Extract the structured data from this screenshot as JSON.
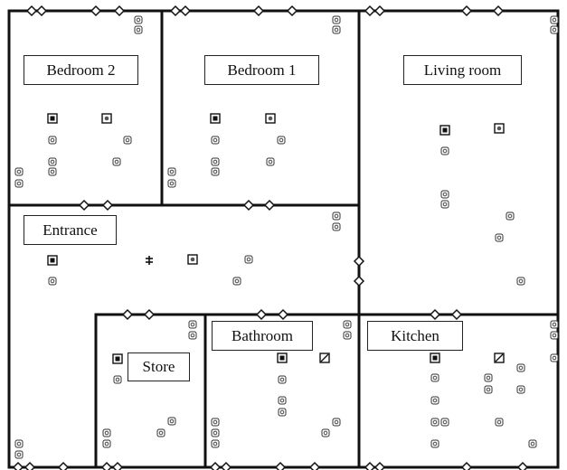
{
  "rooms": {
    "bedroom2": "Bedroom 2",
    "bedroom1": "Bedroom 1",
    "living": "Living room",
    "entrance": "Entrance",
    "store": "Store",
    "bathroom": "Bathroom",
    "kitchen": "Kitchen"
  },
  "icons": {
    "sensor_small": "sensor-icon",
    "sensor_filled": "sensor-filled-icon",
    "sensor_cross": "sensor-cross-icon",
    "sensor_slash": "sensor-slash-icon",
    "door_diamond": "door-diamond-icon",
    "person": "person-icon"
  },
  "colors": {
    "wall": "#111111",
    "background": "#ffffff"
  }
}
